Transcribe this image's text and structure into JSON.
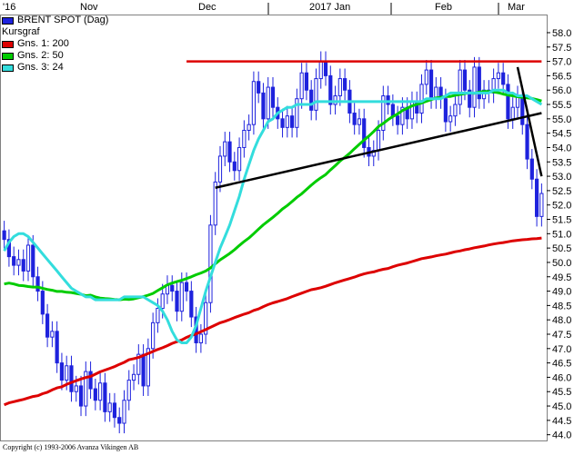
{
  "chart_data": {
    "type": "candlestick",
    "title": "BRENT SPOT (Dag)",
    "subtitle": "Kursgraf",
    "x_tick_labels": [
      "'16",
      "Nov",
      "Dec",
      "2017 Jan",
      "Feb",
      "Mar"
    ],
    "y_ticks": [
      44.0,
      44.5,
      45.0,
      45.5,
      46.0,
      46.5,
      47.0,
      47.5,
      48.0,
      48.5,
      49.0,
      49.5,
      50.0,
      50.5,
      51.0,
      51.5,
      52.0,
      52.5,
      53.0,
      53.5,
      54.0,
      54.5,
      55.0,
      55.5,
      56.0,
      56.5,
      57.0,
      57.5,
      58.0
    ],
    "ylim": [
      43.8,
      58.6
    ],
    "grid": false,
    "legend_position": "top-left",
    "legend": [
      {
        "label": "Gns. 1: 200",
        "color": "#dd0000"
      },
      {
        "label": "Gns. 2: 50",
        "color": "#00cc00"
      },
      {
        "label": "Gns. 3: 24",
        "color": "#33dddd"
      }
    ],
    "series_color": "#1e22dd",
    "close": [
      50.8,
      50.2,
      49.9,
      50.1,
      49.7,
      50.6,
      49.5,
      49.0,
      48.2,
      47.4,
      47.6,
      46.5,
      45.9,
      46.4,
      45.5,
      45.7,
      45.0,
      46.2,
      45.6,
      45.2,
      45.8,
      44.8,
      45.1,
      44.6,
      44.4,
      45.2,
      45.9,
      46.1,
      46.8,
      45.7,
      47.0,
      47.9,
      48.4,
      48.9,
      49.2,
      49.0,
      48.3,
      49.3,
      49.0,
      48.1,
      47.2,
      47.5,
      48.6,
      51.3,
      52.8,
      53.7,
      54.2,
      53.5,
      53.2,
      54.0,
      54.6,
      54.8,
      56.3,
      55.9,
      55.0,
      56.1,
      55.4,
      55.0,
      54.7,
      55.1,
      54.7,
      55.7,
      56.6,
      56.0,
      55.3,
      56.4,
      57.0,
      56.5,
      55.5,
      55.8,
      56.4,
      56.0,
      55.2,
      54.8,
      55.0,
      54.0,
      53.7,
      53.9,
      54.6,
      55.8,
      55.5,
      55.1,
      54.8,
      55.4,
      55.0,
      55.6,
      55.2,
      56.2,
      56.7,
      55.7,
      56.1,
      55.7,
      54.9,
      55.1,
      55.5,
      56.7,
      56.0,
      55.4,
      56.8,
      55.7,
      56.0,
      55.9,
      56.4,
      56.6,
      56.2,
      55.0,
      55.4,
      55.8,
      54.8,
      53.6,
      52.9,
      51.6,
      52.4
    ],
    "sma200": [
      45.04,
      45.11,
      45.15,
      45.19,
      45.23,
      45.28,
      45.33,
      45.36,
      45.43,
      45.48,
      45.56,
      45.63,
      45.67,
      45.75,
      45.82,
      45.88,
      45.94,
      45.99,
      46.03,
      46.11,
      46.19,
      46.25,
      46.31,
      46.37,
      46.45,
      46.52,
      46.61,
      46.65,
      46.69,
      46.76,
      46.83,
      46.9,
      46.97,
      47.03,
      47.1,
      47.18,
      47.24,
      47.3,
      47.39,
      47.46,
      47.51,
      47.59,
      47.66,
      47.74,
      47.82,
      47.9,
      47.95,
      48.01,
      48.08,
      48.14,
      48.2,
      48.25,
      48.33,
      48.38,
      48.46,
      48.53,
      48.59,
      48.64,
      48.69,
      48.74,
      48.81,
      48.87,
      48.93,
      48.99,
      49.05,
      49.08,
      49.12,
      49.17,
      49.23,
      49.29,
      49.34,
      49.39,
      49.44,
      49.49,
      49.55,
      49.6,
      49.64,
      49.67,
      49.72,
      49.76,
      49.79,
      49.85,
      49.9,
      49.94,
      49.98,
      50.03,
      50.08,
      50.13,
      50.16,
      50.19,
      50.23,
      50.26,
      50.29,
      50.33,
      50.37,
      50.4,
      50.44,
      50.47,
      50.51,
      50.54,
      50.57,
      50.61,
      50.64,
      50.67,
      50.69,
      50.72,
      50.75,
      50.77,
      50.79,
      50.8,
      50.82,
      50.83,
      50.85
    ],
    "sma50": [
      49.25,
      49.28,
      49.25,
      49.2,
      49.19,
      49.16,
      49.14,
      49.14,
      49.1,
      49.06,
      49.03,
      48.99,
      48.99,
      48.96,
      48.95,
      48.92,
      48.89,
      48.84,
      48.86,
      48.8,
      48.76,
      48.74,
      48.73,
      48.71,
      48.7,
      48.72,
      48.71,
      48.73,
      48.77,
      48.81,
      48.86,
      48.92,
      49.02,
      49.12,
      49.22,
      49.28,
      49.33,
      49.38,
      49.44,
      49.5,
      49.57,
      49.63,
      49.7,
      49.81,
      49.95,
      50.09,
      50.2,
      50.31,
      50.44,
      50.59,
      50.73,
      50.85,
      51.0,
      51.16,
      51.31,
      51.44,
      51.57,
      51.71,
      51.86,
      51.98,
      52.12,
      52.27,
      52.39,
      52.54,
      52.69,
      52.83,
      52.95,
      53.06,
      53.22,
      53.37,
      53.53,
      53.66,
      53.8,
      53.96,
      54.11,
      54.26,
      54.4,
      54.56,
      54.73,
      54.84,
      54.97,
      55.08,
      55.17,
      55.29,
      55.37,
      55.45,
      55.5,
      55.55,
      55.61,
      55.67,
      55.73,
      55.75,
      55.78,
      55.78,
      55.82,
      55.85,
      55.88,
      55.91,
      55.89,
      55.93,
      55.95,
      55.95,
      55.94,
      55.91,
      55.86,
      55.83,
      55.8,
      55.77,
      55.75,
      55.73,
      55.71,
      55.67,
      55.62
    ],
    "sma24": [
      50.4,
      50.7,
      50.9,
      51.0,
      51.0,
      50.9,
      50.7,
      50.5,
      50.3,
      50.1,
      49.9,
      49.7,
      49.5,
      49.3,
      49.1,
      49.0,
      48.9,
      48.8,
      48.8,
      48.7,
      48.7,
      48.7,
      48.7,
      48.7,
      48.7,
      48.8,
      48.8,
      48.8,
      48.8,
      48.8,
      48.7,
      48.6,
      48.5,
      48.3,
      48.0,
      47.6,
      47.3,
      47.2,
      47.2,
      47.4,
      47.8,
      48.4,
      49.0,
      49.5,
      50.0,
      50.5,
      50.9,
      51.3,
      51.8,
      52.3,
      52.9,
      53.4,
      53.9,
      54.3,
      54.6,
      54.9,
      55.0,
      55.2,
      55.3,
      55.4,
      55.4,
      55.5,
      55.5,
      55.5,
      55.5,
      55.6,
      55.6,
      55.6,
      55.6,
      55.6,
      55.6,
      55.6,
      55.6,
      55.6,
      55.6,
      55.6,
      55.6,
      55.6,
      55.6,
      55.6,
      55.6,
      55.6,
      55.6,
      55.6,
      55.6,
      55.6,
      55.6,
      55.6,
      55.7,
      55.7,
      55.7,
      55.7,
      55.8,
      55.9,
      55.9,
      55.9,
      55.9,
      55.9,
      55.9,
      55.9,
      55.9,
      55.9,
      56.0,
      56.0,
      56.0,
      55.9,
      55.9,
      55.8,
      55.8,
      55.8,
      55.7,
      55.6,
      55.5
    ],
    "lines": [
      {
        "name": "resistance",
        "color": "#dd0000",
        "from": [
          38,
          57.0
        ],
        "to": [
          112,
          57.0
        ]
      },
      {
        "name": "support",
        "color": "#000000",
        "from": [
          44,
          52.6
        ],
        "to": [
          112,
          55.2
        ]
      },
      {
        "name": "trend",
        "color": "#000000",
        "from": [
          107,
          56.8
        ],
        "to": [
          112,
          53.0
        ]
      }
    ]
  },
  "copyright": "Copyright (c) 1993-2006 Avanza Vikingen AB"
}
